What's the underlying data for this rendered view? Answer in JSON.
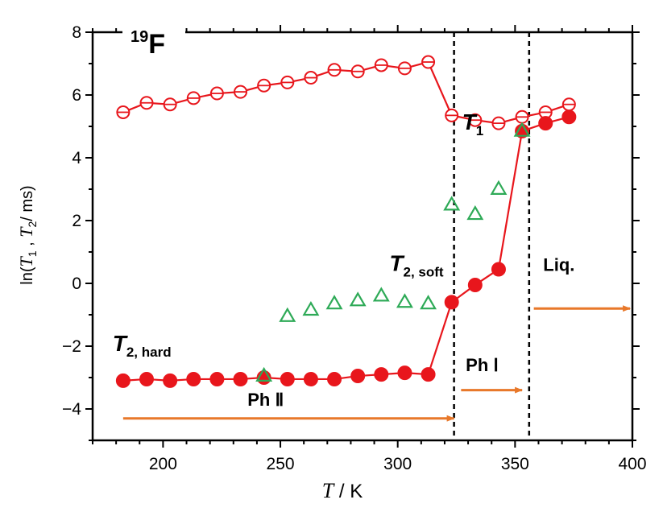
{
  "chart_data": {
    "type": "scatter",
    "title": "",
    "nucleus_label": {
      "sup": "19",
      "main": "F"
    },
    "xlabel": {
      "italic": "T",
      "rest": " / K"
    },
    "ylabel": {
      "prefix": "ln(",
      "t1": "T",
      "t1sub": "1",
      "sep": " ,  ",
      "t2": "T",
      "t2sub": "2",
      "rest": "/ ms)"
    },
    "xlim": [
      170,
      400
    ],
    "ylim": [
      -5,
      8
    ],
    "xticks": [
      200,
      250,
      300,
      350,
      400
    ],
    "yticks": [
      -4,
      -2,
      0,
      2,
      4,
      6,
      8
    ],
    "grid": false,
    "colors": {
      "red": "#e8161c",
      "green": "#2eaa57",
      "orange": "#e8782a",
      "axis": "#000000"
    },
    "series": [
      {
        "name": "T1",
        "marker": "open-circle-cross",
        "connected": true,
        "x": [
          183,
          193,
          203,
          213,
          223,
          233,
          243,
          253,
          263,
          273,
          283,
          293,
          303,
          313,
          323,
          333,
          343,
          353,
          363,
          373
        ],
        "y": [
          5.45,
          5.75,
          5.7,
          5.9,
          6.05,
          6.1,
          6.3,
          6.4,
          6.55,
          6.8,
          6.75,
          6.95,
          6.85,
          7.05,
          5.35,
          5.2,
          5.1,
          5.3,
          5.45,
          5.7
        ]
      },
      {
        "name": "T2, hard",
        "marker": "filled-circle",
        "connected": true,
        "x": [
          183,
          193,
          203,
          213,
          223,
          233,
          243,
          253,
          263,
          273,
          283,
          293,
          303,
          313,
          323,
          333,
          343,
          353,
          363,
          373
        ],
        "y": [
          -3.1,
          -3.05,
          -3.1,
          -3.05,
          -3.05,
          -3.05,
          -3.0,
          -3.05,
          -3.05,
          -3.05,
          -2.95,
          -2.9,
          -2.85,
          -2.9,
          -0.6,
          -0.05,
          0.45,
          4.85,
          5.1,
          5.3
        ]
      },
      {
        "name": "T2, soft",
        "marker": "open-triangle",
        "connected": false,
        "x": [
          243,
          253,
          263,
          273,
          283,
          293,
          303,
          313,
          323,
          333,
          343,
          353
        ],
        "y": [
          -2.95,
          -1.05,
          -0.85,
          -0.65,
          -0.55,
          -0.4,
          -0.6,
          -0.65,
          2.5,
          2.2,
          3.0,
          4.85
        ]
      }
    ],
    "series_labels": [
      {
        "main": "T",
        "sub": "1",
        "x": 332,
        "y": 4.9
      },
      {
        "main": "T",
        "sub": "2, soft",
        "x": 308,
        "y": 0.4
      },
      {
        "main": "T",
        "sub": "2, hard",
        "x": 191,
        "y": -2.15
      }
    ],
    "phase_boundaries": [
      324,
      356
    ],
    "phase_labels": [
      {
        "text": "Ph  Ⅱ",
        "x": 236,
        "y": -3.9
      },
      {
        "text": "Ph   Ⅰ",
        "x": 329,
        "y": -2.8
      },
      {
        "text": "Liq.",
        "x": 362,
        "y": 0.4
      }
    ],
    "phase_arrows": [
      {
        "x1": 183,
        "x2": 324,
        "y": -4.3
      },
      {
        "x1": 327,
        "x2": 353,
        "y": -3.4
      },
      {
        "x1": 358,
        "x2": 399,
        "y": -0.8
      }
    ]
  }
}
